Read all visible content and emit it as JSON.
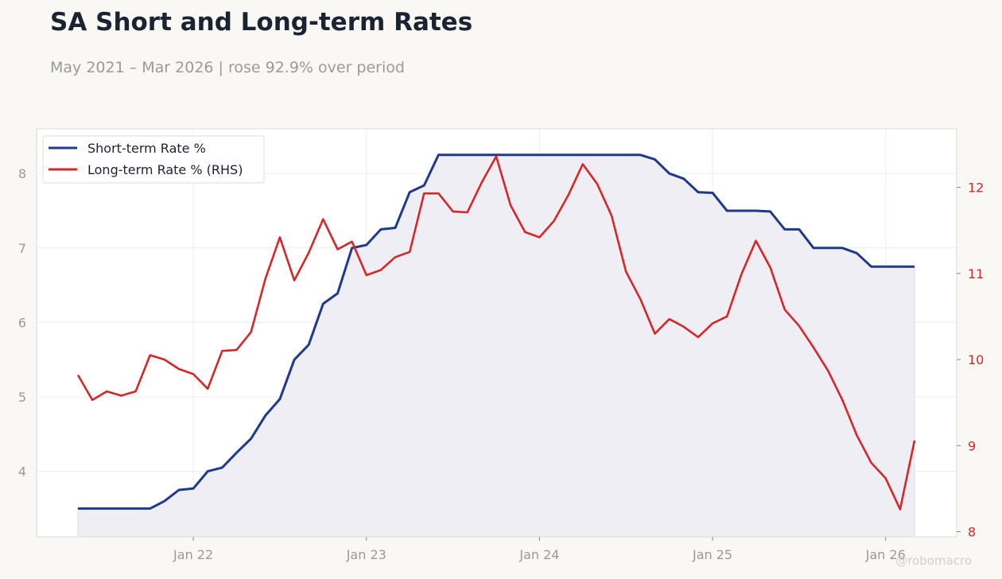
{
  "title": "SA Short and Long-term Rates",
  "subtitle": "May 2021 – Mar 2026 | rose 92.9% over period",
  "watermark": "@robomacro",
  "colors": {
    "short_rate": "#1f3a8a",
    "long_rate": "#d62728",
    "fill": "#eeeef4",
    "grid": "#ececec",
    "frame": "#dcdad2"
  },
  "chart_data": {
    "type": "line",
    "x_start": "2021-05",
    "x_end": "2026-03",
    "x_ticks": [
      "Jan 22",
      "Jan 23",
      "Jan 24",
      "Jan 25",
      "Jan 26"
    ],
    "x_tick_months": [
      "2022-01",
      "2023-01",
      "2024-01",
      "2025-01",
      "2026-01"
    ],
    "y_left": {
      "ticks": [
        4,
        5,
        6,
        7,
        8
      ],
      "range": [
        3.12,
        8.6
      ]
    },
    "y_right": {
      "ticks": [
        8,
        9,
        10,
        11,
        12
      ],
      "range": [
        7.94,
        12.68
      ]
    },
    "grid": true,
    "legend": {
      "position": "top-left",
      "entries": [
        "Short-term Rate %",
        "Long-term Rate % (RHS)"
      ]
    },
    "series": [
      {
        "name": "Short-term Rate %",
        "axis": "left",
        "area_fill": true,
        "values": [
          3.5,
          3.5,
          3.5,
          3.5,
          3.5,
          3.5,
          3.6,
          3.75,
          3.77,
          4.0,
          4.05,
          4.25,
          4.44,
          4.75,
          4.97,
          5.5,
          5.7,
          6.25,
          6.39,
          7.0,
          7.04,
          7.25,
          7.27,
          7.75,
          7.84,
          8.25,
          8.25,
          8.25,
          8.25,
          8.25,
          8.25,
          8.25,
          8.25,
          8.25,
          8.25,
          8.25,
          8.25,
          8.25,
          8.25,
          8.25,
          8.19,
          8.0,
          7.93,
          7.75,
          7.74,
          7.5,
          7.5,
          7.5,
          7.49,
          7.25,
          7.25,
          7.0,
          7.0,
          7.0,
          6.93,
          6.75,
          6.75,
          6.75,
          6.75
        ]
      },
      {
        "name": "Long-term Rate % (RHS)",
        "axis": "right",
        "values": [
          9.82,
          9.53,
          9.63,
          9.58,
          9.63,
          10.05,
          10.0,
          9.89,
          9.83,
          9.66,
          10.1,
          10.11,
          10.32,
          10.94,
          11.42,
          10.92,
          11.24,
          11.63,
          11.28,
          11.37,
          10.98,
          11.04,
          11.19,
          11.25,
          11.93,
          11.93,
          11.72,
          11.71,
          12.06,
          12.36,
          11.79,
          11.48,
          11.42,
          11.61,
          11.91,
          12.27,
          12.04,
          11.67,
          11.02,
          10.7,
          10.3,
          10.47,
          10.38,
          10.26,
          10.42,
          10.5,
          10.99,
          11.38,
          11.07,
          10.58,
          10.39,
          10.14,
          9.87,
          9.53,
          9.12,
          8.8,
          8.62,
          8.26,
          9.06
        ]
      }
    ]
  }
}
